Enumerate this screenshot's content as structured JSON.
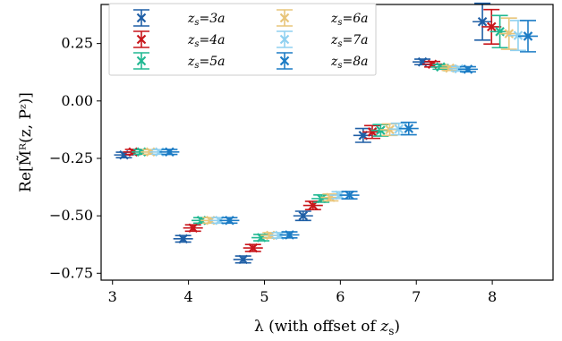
{
  "chart_data": {
    "type": "scatter",
    "xlabel": "λ (with offset of z_s)",
    "ylabel": "Re[M̃ᴿ(z, Pᶻ)]",
    "xlim": [
      2.85,
      8.8
    ],
    "ylim": [
      -0.78,
      0.42
    ],
    "xticks": [
      "3",
      "4",
      "5",
      "6",
      "7",
      "8"
    ],
    "yticks": [
      "0.25",
      "0.00",
      "−0.25",
      "−0.50",
      "−0.75"
    ],
    "legend_position": "top-left",
    "grid": false,
    "series": [
      {
        "name": "z_s=3a",
        "color": "#1f5fa6",
        "points": [
          {
            "x": 3.15,
            "y": -0.235,
            "err": 0.012
          },
          {
            "x": 3.93,
            "y": -0.6,
            "err": 0.014
          },
          {
            "x": 4.72,
            "y": -0.69,
            "err": 0.015
          },
          {
            "x": 5.51,
            "y": -0.5,
            "err": 0.02
          },
          {
            "x": 6.3,
            "y": -0.15,
            "err": 0.03
          },
          {
            "x": 7.08,
            "y": 0.17,
            "err": 0.012
          },
          {
            "x": 7.87,
            "y": 0.345,
            "err": 0.08
          }
        ]
      },
      {
        "name": "z_s=4a",
        "color": "#c8171c",
        "points": [
          {
            "x": 3.27,
            "y": -0.222,
            "err": 0.011
          },
          {
            "x": 4.06,
            "y": -0.553,
            "err": 0.014
          },
          {
            "x": 4.85,
            "y": -0.64,
            "err": 0.015
          },
          {
            "x": 5.64,
            "y": -0.455,
            "err": 0.018
          },
          {
            "x": 6.42,
            "y": -0.135,
            "err": 0.028
          },
          {
            "x": 7.21,
            "y": 0.16,
            "err": 0.012
          },
          {
            "x": 7.99,
            "y": 0.323,
            "err": 0.075
          }
        ]
      },
      {
        "name": "z_s=5a",
        "color": "#21b892",
        "points": [
          {
            "x": 3.38,
            "y": -0.222,
            "err": 0.01
          },
          {
            "x": 4.17,
            "y": -0.52,
            "err": 0.012
          },
          {
            "x": 4.96,
            "y": -0.595,
            "err": 0.014
          },
          {
            "x": 5.75,
            "y": -0.425,
            "err": 0.016
          },
          {
            "x": 6.53,
            "y": -0.128,
            "err": 0.025
          },
          {
            "x": 7.32,
            "y": 0.148,
            "err": 0.01
          },
          {
            "x": 8.1,
            "y": 0.302,
            "err": 0.07
          }
        ]
      },
      {
        "name": "z_s=6a",
        "color": "#e8c57a",
        "points": [
          {
            "x": 3.5,
            "y": -0.222,
            "err": 0.01
          },
          {
            "x": 4.29,
            "y": -0.52,
            "err": 0.012
          },
          {
            "x": 5.08,
            "y": -0.585,
            "err": 0.012
          },
          {
            "x": 5.87,
            "y": -0.42,
            "err": 0.015
          },
          {
            "x": 6.65,
            "y": -0.125,
            "err": 0.025
          },
          {
            "x": 7.44,
            "y": 0.143,
            "err": 0.01
          },
          {
            "x": 8.22,
            "y": 0.293,
            "err": 0.068
          }
        ]
      },
      {
        "name": "z_s=7a",
        "color": "#8fd0f0",
        "points": [
          {
            "x": 3.62,
            "y": -0.222,
            "err": 0.01
          },
          {
            "x": 4.41,
            "y": -0.52,
            "err": 0.012
          },
          {
            "x": 5.2,
            "y": -0.585,
            "err": 0.012
          },
          {
            "x": 5.99,
            "y": -0.41,
            "err": 0.015
          },
          {
            "x": 6.77,
            "y": -0.122,
            "err": 0.025
          },
          {
            "x": 7.56,
            "y": 0.14,
            "err": 0.01
          },
          {
            "x": 8.34,
            "y": 0.285,
            "err": 0.065
          }
        ]
      },
      {
        "name": "z_s=8a",
        "color": "#1c7cc5",
        "points": [
          {
            "x": 3.75,
            "y": -0.222,
            "err": 0.011
          },
          {
            "x": 4.54,
            "y": -0.52,
            "err": 0.012
          },
          {
            "x": 5.33,
            "y": -0.583,
            "err": 0.013
          },
          {
            "x": 6.12,
            "y": -0.41,
            "err": 0.016
          },
          {
            "x": 6.9,
            "y": -0.12,
            "err": 0.027
          },
          {
            "x": 7.68,
            "y": 0.138,
            "err": 0.011
          },
          {
            "x": 8.47,
            "y": 0.282,
            "err": 0.068
          }
        ]
      }
    ]
  }
}
